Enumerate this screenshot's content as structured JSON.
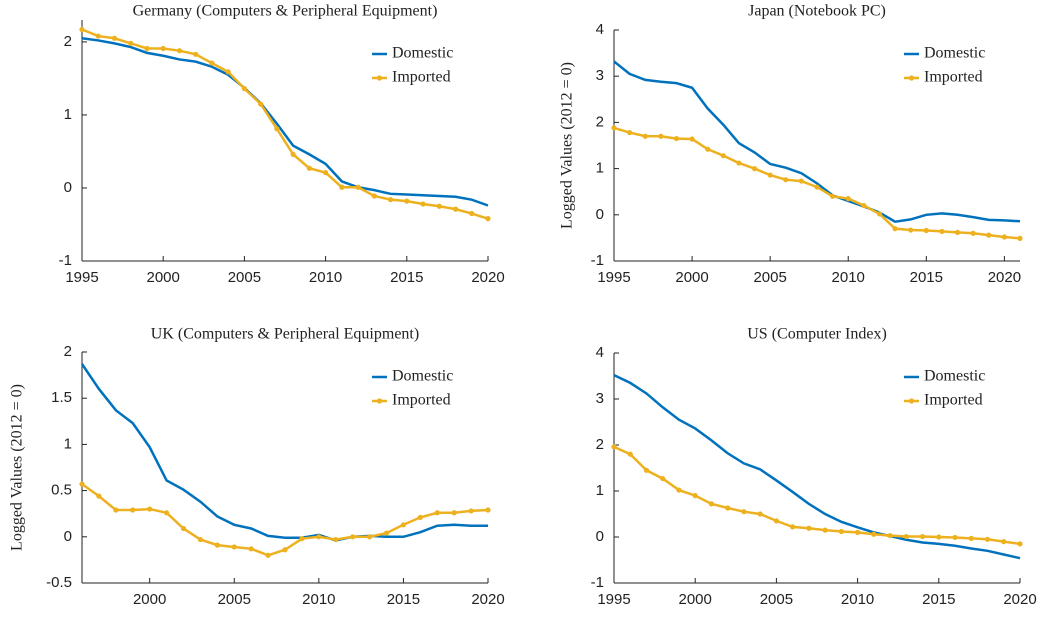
{
  "chart_data": [
    {
      "type": "line",
      "title": "Germany (Computers & Peripheral Equipment)",
      "x": [
        1995,
        1996,
        1997,
        1998,
        1999,
        2000,
        2001,
        2002,
        2003,
        2004,
        2005,
        2006,
        2007,
        2008,
        2009,
        2010,
        2011,
        2012,
        2013,
        2014,
        2015,
        2016,
        2017,
        2018,
        2019,
        2020
      ],
      "series": [
        {
          "name": "Domestic",
          "color": "#0072bd",
          "values": [
            2.05,
            2.02,
            1.98,
            1.93,
            1.85,
            1.81,
            1.76,
            1.73,
            1.66,
            1.55,
            1.37,
            1.16,
            0.88,
            0.58,
            0.46,
            0.33,
            0.09,
            0.01,
            -0.03,
            -0.08,
            -0.09,
            -0.1,
            -0.11,
            -0.12,
            -0.16,
            -0.24
          ]
        },
        {
          "name": "Imported",
          "color": "#edb120",
          "values": [
            2.17,
            2.08,
            2.05,
            1.98,
            1.91,
            1.91,
            1.88,
            1.83,
            1.71,
            1.59,
            1.36,
            1.15,
            0.81,
            0.46,
            0.27,
            0.21,
            0.01,
            0.01,
            -0.11,
            -0.16,
            -0.18,
            -0.22,
            -0.25,
            -0.29,
            -0.35,
            -0.42
          ]
        }
      ],
      "xlim": [
        1995,
        2020
      ],
      "ylim": [
        -1,
        2.3
      ],
      "xticks": [
        1995,
        2000,
        2005,
        2010,
        2015,
        2020
      ],
      "yticks": [
        -1,
        0,
        1,
        2
      ],
      "legend": "upper right"
    },
    {
      "type": "line",
      "title": "Japan (Notebook PC)",
      "ylabel": "Logged Values (2012 = 0)",
      "x": [
        1995,
        1996,
        1997,
        1998,
        1999,
        2000,
        2001,
        2002,
        2003,
        2004,
        2005,
        2006,
        2007,
        2008,
        2009,
        2010,
        2011,
        2012,
        2013,
        2014,
        2015,
        2016,
        2017,
        2018,
        2019,
        2020,
        2021
      ],
      "series": [
        {
          "name": "Domestic",
          "color": "#0072bd",
          "values": [
            3.32,
            3.05,
            2.92,
            2.88,
            2.85,
            2.75,
            2.3,
            1.95,
            1.55,
            1.35,
            1.1,
            1.02,
            0.9,
            0.68,
            0.42,
            0.3,
            0.18,
            0.05,
            -0.15,
            -0.1,
            0.0,
            0.03,
            0.0,
            -0.05,
            -0.11,
            -0.12,
            -0.14
          ]
        },
        {
          "name": "Imported",
          "color": "#edb120",
          "values": [
            1.88,
            1.78,
            1.7,
            1.7,
            1.65,
            1.64,
            1.42,
            1.28,
            1.12,
            1.0,
            0.86,
            0.76,
            0.73,
            0.6,
            0.4,
            0.35,
            0.2,
            0.02,
            -0.3,
            -0.33,
            -0.34,
            -0.36,
            -0.38,
            -0.4,
            -0.44,
            -0.48,
            -0.51
          ]
        }
      ],
      "xlim": [
        1995,
        2021
      ],
      "ylim": [
        -1,
        4
      ],
      "xticks": [
        1995,
        2000,
        2005,
        2010,
        2015,
        2020
      ],
      "yticks": [
        -1,
        0,
        1,
        2,
        3,
        4
      ],
      "legend": "upper right"
    },
    {
      "type": "line",
      "title": "UK (Computers & Peripheral Equipment)",
      "ylabel": "Logged Values (2012 = 0)",
      "x": [
        1996,
        1997,
        1998,
        1999,
        2000,
        2001,
        2002,
        2003,
        2004,
        2005,
        2006,
        2007,
        2008,
        2009,
        2010,
        2011,
        2012,
        2013,
        2014,
        2015,
        2016,
        2017,
        2018,
        2019,
        2020
      ],
      "series": [
        {
          "name": "Domestic",
          "color": "#0072bd",
          "values": [
            1.87,
            1.6,
            1.37,
            1.23,
            0.97,
            0.61,
            0.51,
            0.38,
            0.22,
            0.13,
            0.09,
            0.01,
            -0.01,
            -0.01,
            0.02,
            -0.04,
            0.0,
            0.01,
            0.0,
            0.0,
            0.05,
            0.12,
            0.13,
            0.12,
            0.12
          ]
        },
        {
          "name": "Imported",
          "color": "#edb120",
          "values": [
            0.57,
            0.44,
            0.29,
            0.29,
            0.3,
            0.26,
            0.09,
            -0.03,
            -0.09,
            -0.11,
            -0.13,
            -0.2,
            -0.14,
            -0.02,
            0.0,
            -0.03,
            0.0,
            0.0,
            0.04,
            0.13,
            0.21,
            0.26,
            0.26,
            0.28,
            0.29
          ]
        }
      ],
      "xlim": [
        1996,
        2020
      ],
      "ylim": [
        -0.5,
        2
      ],
      "xticks": [
        2000,
        2005,
        2010,
        2015,
        2020
      ],
      "yticks": [
        -0.5,
        0,
        0.5,
        1,
        1.5,
        2
      ],
      "legend": "upper right"
    },
    {
      "type": "line",
      "title": "US (Computer Index)",
      "x": [
        1995,
        1996,
        1997,
        1998,
        1999,
        2000,
        2001,
        2002,
        2003,
        2004,
        2005,
        2006,
        2007,
        2008,
        2009,
        2010,
        2011,
        2012,
        2013,
        2014,
        2015,
        2016,
        2017,
        2018,
        2019,
        2020
      ],
      "series": [
        {
          "name": "Domestic",
          "color": "#0072bd",
          "values": [
            3.52,
            3.35,
            3.12,
            2.82,
            2.55,
            2.36,
            2.1,
            1.82,
            1.6,
            1.47,
            1.23,
            0.98,
            0.72,
            0.5,
            0.33,
            0.21,
            0.1,
            0.02,
            -0.06,
            -0.12,
            -0.15,
            -0.19,
            -0.25,
            -0.3,
            -0.38,
            -0.46
          ]
        },
        {
          "name": "Imported",
          "color": "#edb120",
          "values": [
            1.96,
            1.8,
            1.45,
            1.27,
            1.02,
            0.9,
            0.72,
            0.63,
            0.55,
            0.5,
            0.35,
            0.22,
            0.19,
            0.15,
            0.12,
            0.1,
            0.06,
            0.03,
            0.01,
            0.01,
            0.0,
            -0.01,
            -0.03,
            -0.05,
            -0.1,
            -0.15
          ]
        }
      ],
      "xlim": [
        1995,
        2020
      ],
      "ylim": [
        -1,
        4
      ],
      "xticks": [
        1995,
        2000,
        2005,
        2010,
        2015,
        2020
      ],
      "yticks": [
        -1,
        0,
        1,
        2,
        3,
        4
      ],
      "legend": "upper right"
    }
  ]
}
